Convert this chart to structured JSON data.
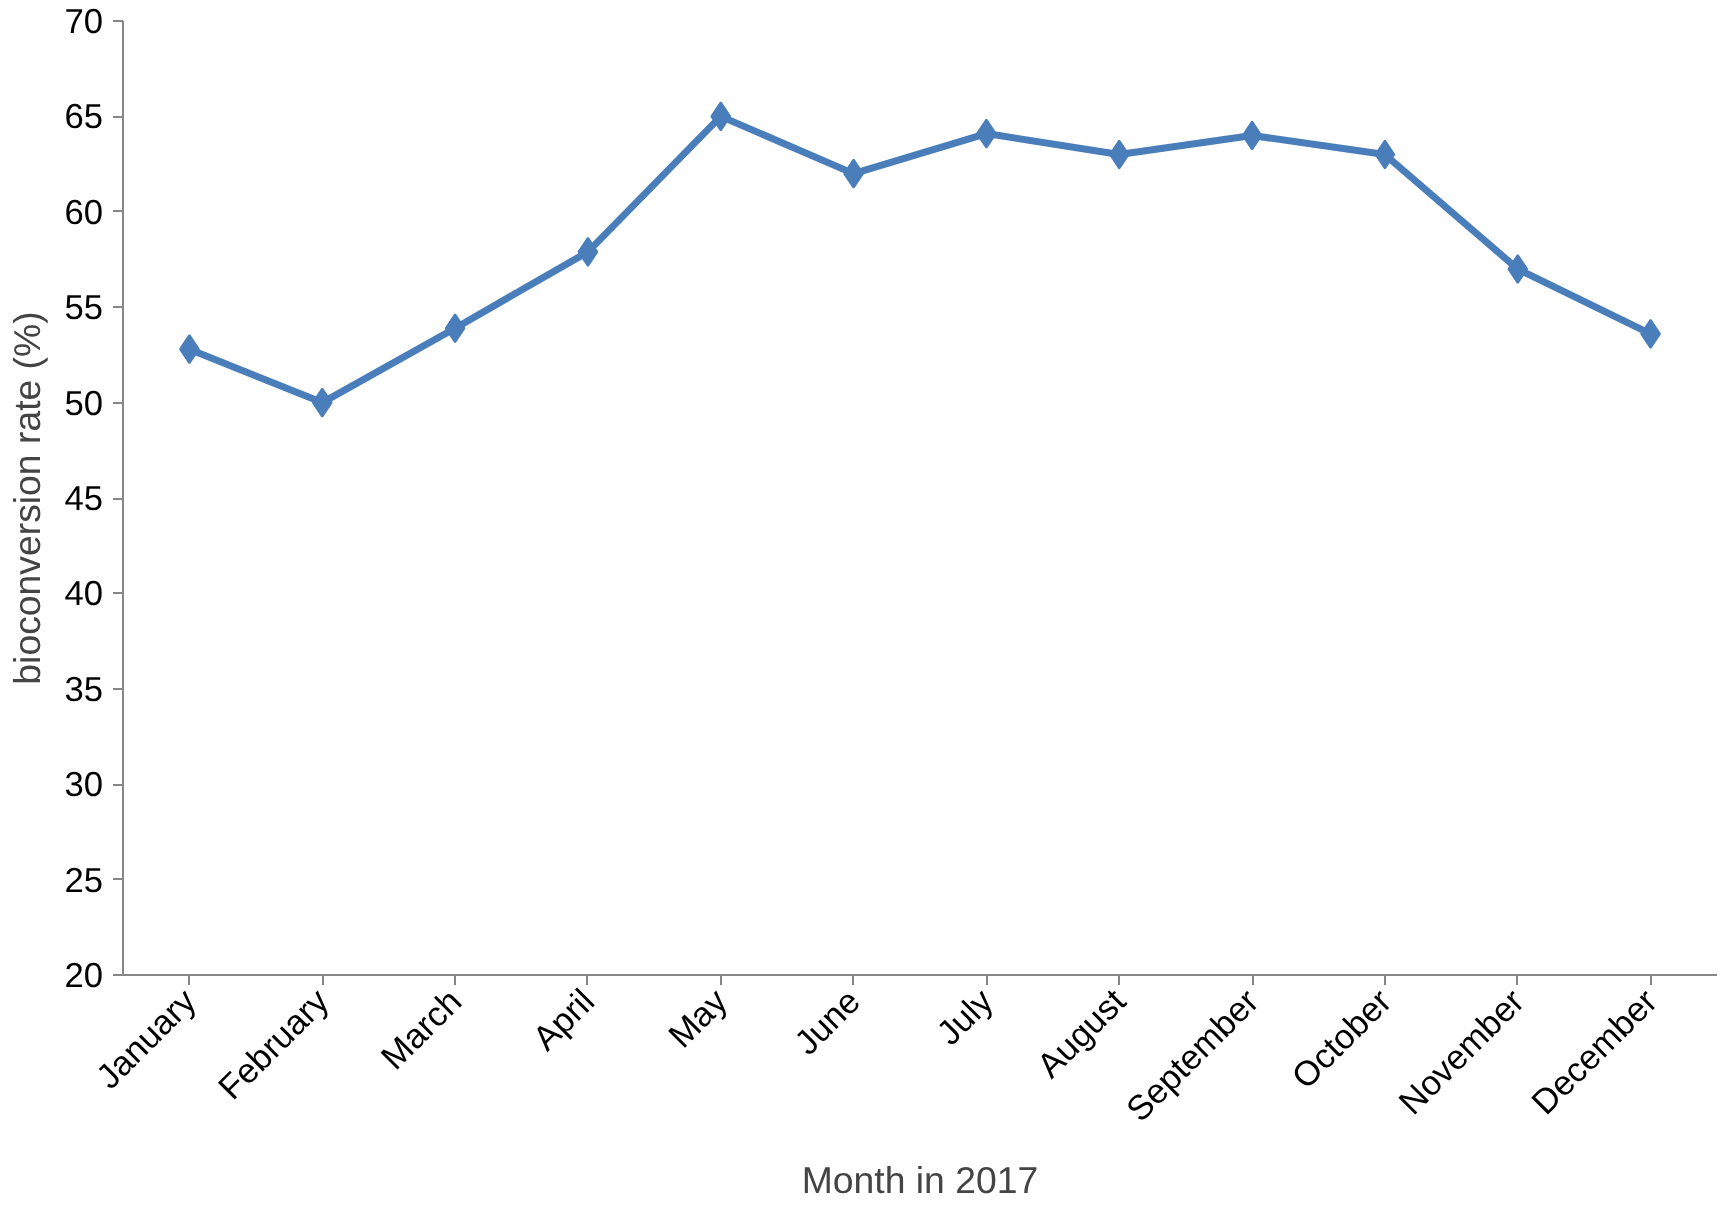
{
  "chart_data": {
    "type": "line",
    "xlabel": "Month in 2017",
    "ylabel": "bioconversion rate (%)",
    "categories": [
      "January",
      "February",
      "March",
      "April",
      "May",
      "June",
      "July",
      "August",
      "September",
      "October",
      "November",
      "December"
    ],
    "series": [
      {
        "color": "#4a7ebb",
        "values": [
          52.8,
          50,
          53.9,
          57.9,
          65,
          62,
          64.1,
          63,
          64,
          63,
          57,
          53.6
        ]
      }
    ],
    "ylim": [
      20,
      70
    ],
    "yticks": [
      20,
      25,
      30,
      35,
      40,
      45,
      50,
      55,
      60,
      65,
      70
    ],
    "grid": false,
    "marker": "diamond",
    "line_style": "solid"
  }
}
